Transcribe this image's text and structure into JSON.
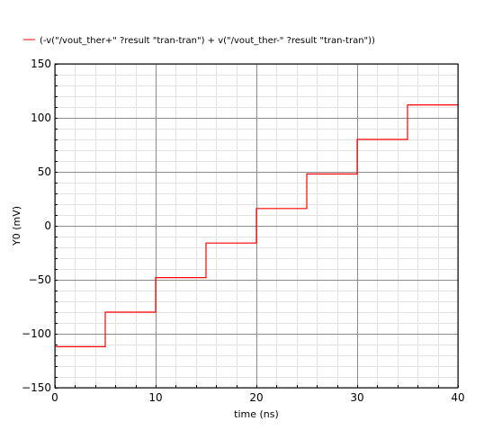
{
  "chart_data": {
    "type": "line",
    "xlabel": "time (ns)",
    "ylabel": "Y0 (mV)",
    "xlim": [
      0,
      40
    ],
    "ylim": [
      -150,
      150
    ],
    "x_ticks": [
      0,
      10,
      20,
      30,
      40
    ],
    "y_ticks": [
      -150,
      -100,
      -50,
      0,
      50,
      100,
      150
    ],
    "grid": true,
    "legend_position": "top-left",
    "series": [
      {
        "name": "(-v(\"/vout_ther+\" ?result \"tran-tran\") + v(\"/vout_ther-\" ?result \"tran-tran\"))",
        "color": "#ff0000",
        "step": true,
        "x": [
          0,
          5,
          10,
          15,
          20,
          25,
          30,
          35,
          40
        ],
        "y": [
          -112,
          -80,
          -48,
          -16,
          16,
          48,
          80,
          112,
          112
        ]
      }
    ]
  }
}
